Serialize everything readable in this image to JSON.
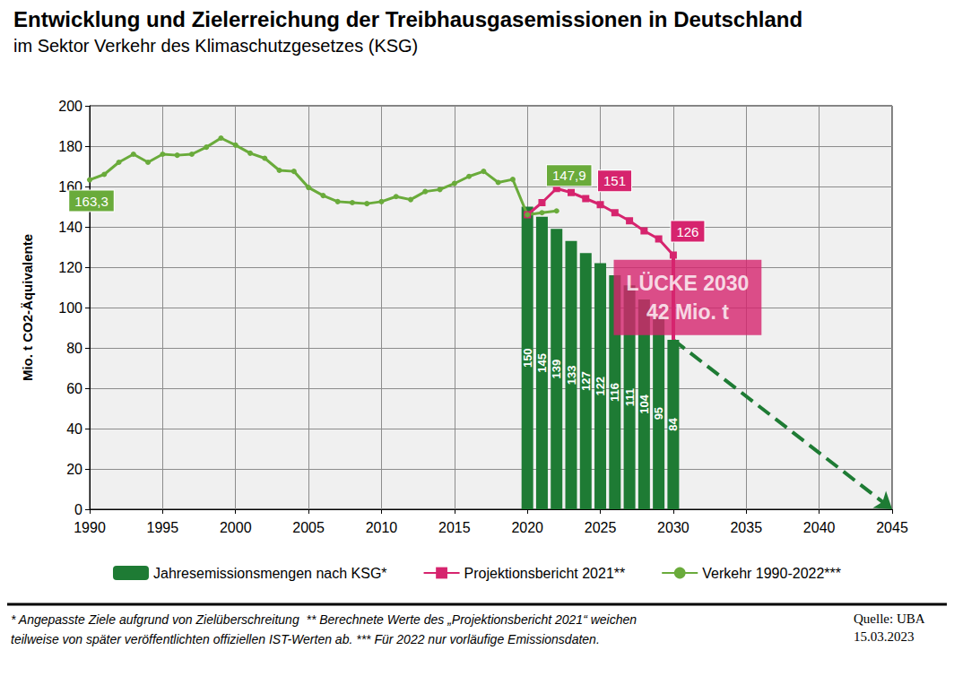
{
  "chart_data": {
    "type": "line",
    "title": "Entwicklung und Zielerreichung der Treibhausgasemissionen in Deutschland",
    "subtitle": "im Sektor Verkehr des Klimaschutzgesetzes (KSG)",
    "y_label": "Mio. t CO2-Äquivalente",
    "xlim": [
      1990,
      2045
    ],
    "xticks": [
      1990,
      1995,
      2000,
      2005,
      2010,
      2015,
      2020,
      2025,
      2030,
      2035,
      2040,
      2045
    ],
    "ylim": [
      0,
      200
    ],
    "yticks": [
      0,
      20,
      40,
      60,
      80,
      100,
      120,
      140,
      160,
      180,
      200
    ],
    "grid": true,
    "legend": "bottom",
    "series": [
      {
        "name": "Jahresemissionsmengen nach KSG*",
        "type": "bar",
        "color": "#1e7b34",
        "data_labels": true,
        "x": [
          2020,
          2021,
          2022,
          2023,
          2024,
          2025,
          2026,
          2027,
          2028,
          2029,
          2030
        ],
        "values": [
          150,
          145,
          139,
          133,
          127,
          122,
          116,
          111,
          104,
          95,
          84
        ]
      },
      {
        "name": "Projektionsbericht 2021**",
        "type": "line",
        "color": "#d6246e",
        "marker": "square",
        "x": [
          2020,
          2021,
          2022,
          2023,
          2024,
          2025,
          2026,
          2027,
          2028,
          2029,
          2030
        ],
        "values": [
          146,
          152,
          159,
          157,
          154,
          151,
          147,
          143,
          138,
          134,
          126
        ],
        "value_labels": [
          null,
          null,
          null,
          null,
          null,
          "151",
          null,
          null,
          null,
          null,
          "126"
        ]
      },
      {
        "name": "Verkehr 1990-2022***",
        "type": "line",
        "color": "#6aab3b",
        "marker": "circle",
        "x": [
          1990,
          1991,
          1992,
          1993,
          1994,
          1995,
          1996,
          1997,
          1998,
          1999,
          2000,
          2001,
          2002,
          2003,
          2004,
          2005,
          2006,
          2007,
          2008,
          2009,
          2010,
          2011,
          2012,
          2013,
          2014,
          2015,
          2016,
          2017,
          2018,
          2019,
          2020,
          2021,
          2022
        ],
        "values": [
          163.3,
          166,
          172,
          176,
          172,
          176,
          175.5,
          176,
          179.5,
          184,
          180.5,
          176.5,
          174,
          168,
          167.5,
          159.5,
          155.5,
          152.5,
          152,
          151.5,
          152.5,
          155,
          153.5,
          157.5,
          158.5,
          161.5,
          165,
          167.5,
          162,
          163.5,
          146,
          147,
          147.9
        ],
        "value_labels": [
          "163,3",
          null,
          null,
          null,
          null,
          null,
          null,
          null,
          null,
          null,
          null,
          null,
          null,
          null,
          null,
          null,
          null,
          null,
          null,
          null,
          null,
          null,
          null,
          null,
          null,
          null,
          null,
          null,
          null,
          null,
          null,
          null,
          "147,9"
        ]
      },
      {
        "type": "line",
        "color": "#1e7b34",
        "line_style": "dashed",
        "marker": "arrow",
        "x": [
          2030,
          2045
        ],
        "values": [
          84,
          0
        ]
      }
    ],
    "gap": {
      "x": 2030,
      "from": 126,
      "to": 84,
      "color": "#d6246e",
      "label": [
        "LÜCKE 2030",
        "42 Mio. t"
      ]
    },
    "footnote": [
      "* Angepasste Ziele aufgrund von Zielüberschreitung  ** Berechnete Werte des „Projektionsbericht 2021“ weichen",
      "teilweise von später veröffentlichten offiziellen IST-Werten ab. *** Für 2022 nur vorläufige Emissionsdaten."
    ],
    "source": [
      "Quelle: UBA",
      "15.03.2023"
    ]
  }
}
